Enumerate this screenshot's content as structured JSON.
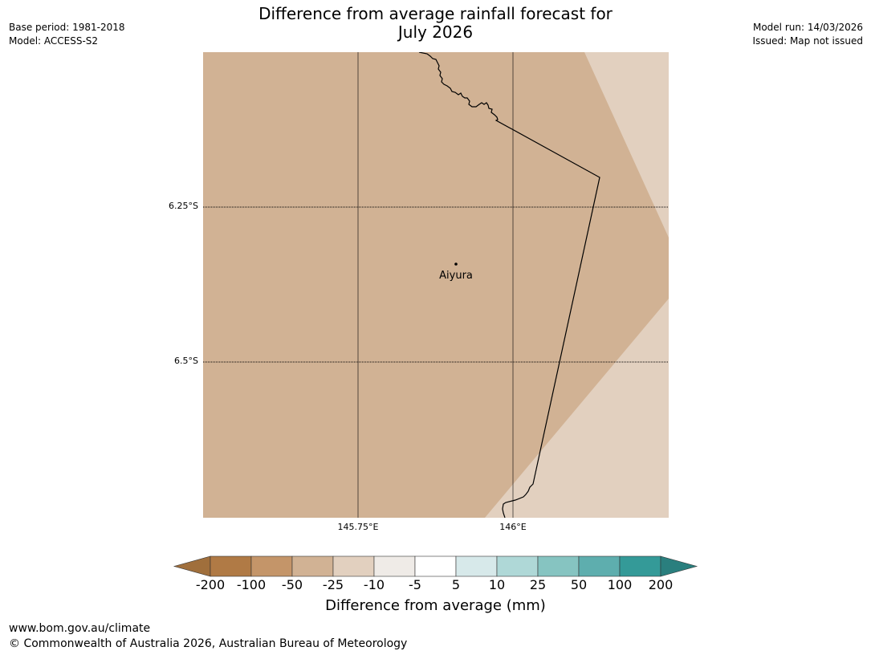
{
  "meta": {
    "base_period": "Base period: 1981-2018",
    "model": "Model: ACCESS-S2",
    "model_run": "Model run: 14/03/2026",
    "issued": "Issued: Map not issued"
  },
  "title": {
    "line1": "Difference from average rainfall forecast for",
    "line2": "July 2026"
  },
  "map": {
    "lat_labels": [
      "6.25°S",
      "6.5°S"
    ],
    "lon_labels": [
      "145.75°E",
      "146°E"
    ],
    "place": "Aiyura",
    "colors": {
      "band_minus_50_to_25": "#d1b294",
      "band_minus_25_to_10": "#e2d0bf",
      "coastline": "#000000",
      "graticule": "#000000"
    }
  },
  "legend": {
    "title": "Difference from average (mm)",
    "ticks": [
      "-200",
      "-100",
      "-50",
      "-25",
      "-10",
      "-5",
      "5",
      "10",
      "25",
      "50",
      "100",
      "200"
    ],
    "colors": [
      "#a06f3c",
      "#b07a45",
      "#c49569",
      "#d1b294",
      "#e2d0bf",
      "#efebe7",
      "#ffffff",
      "#d7e9ea",
      "#afd8d7",
      "#86c4c1",
      "#5eaeae",
      "#349a98",
      "#2a7f7e"
    ]
  },
  "footer": {
    "url": "www.bom.gov.au/climate",
    "copyright": "© Commonwealth of Australia 2026, Australian Bureau of Meteorology"
  }
}
